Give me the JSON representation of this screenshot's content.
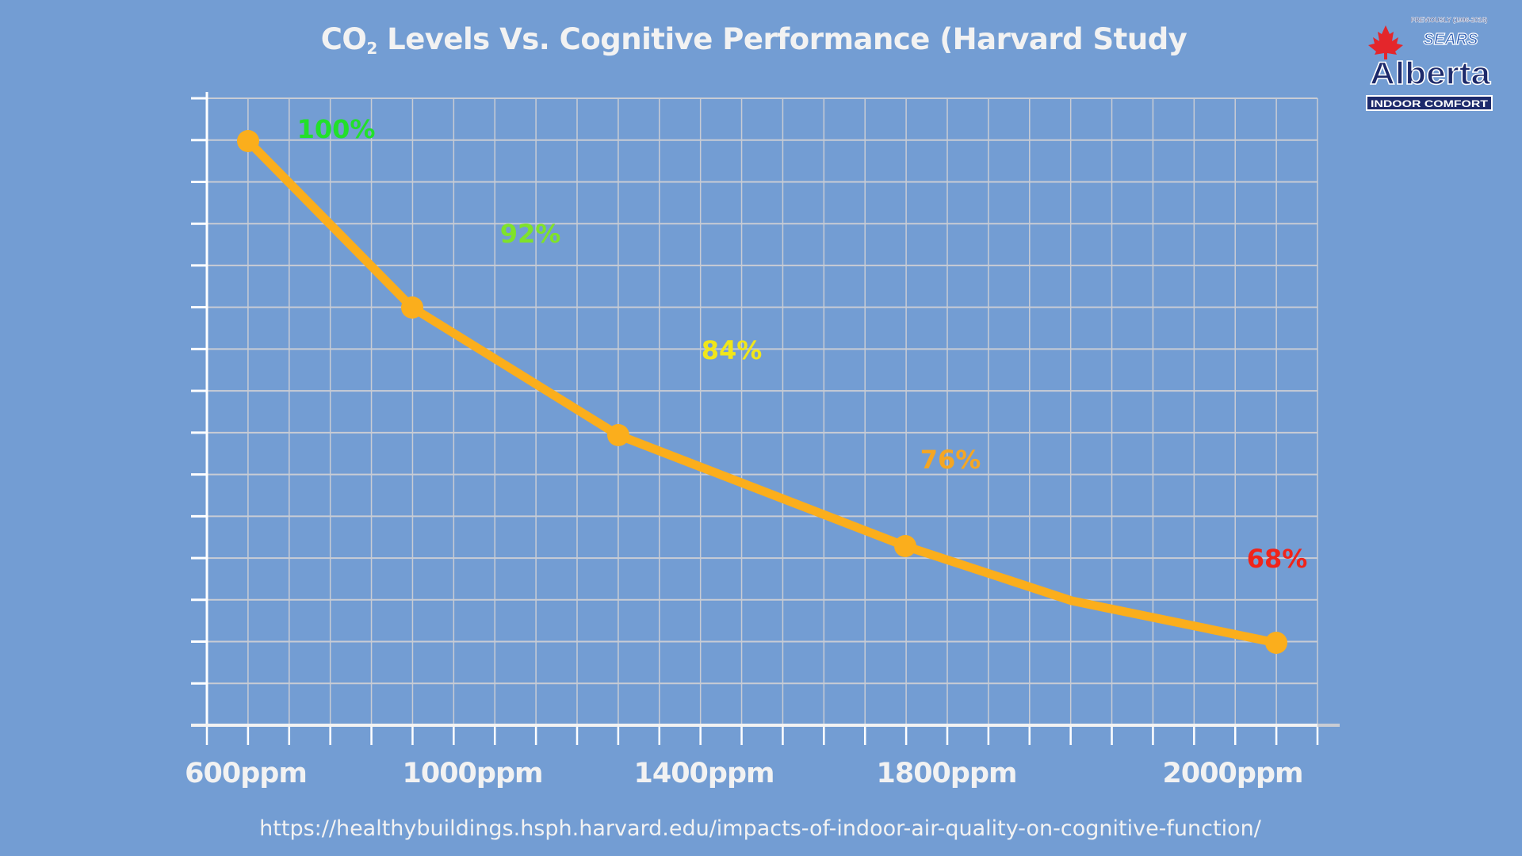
{
  "chart_data": {
    "type": "line",
    "title_main": "CO",
    "title_sub": "2",
    "title_rest": " Levels Vs. Cognitive Performance (Harvard Study",
    "x_tick_labels": [
      "600ppm",
      "1000ppm",
      "1400ppm",
      "1800ppm",
      "2000ppm"
    ],
    "series": [
      {
        "values": [
          100,
          92,
          84,
          76,
          68
        ]
      }
    ],
    "data_labels": [
      "100%",
      "92%",
      "84%",
      "76%",
      "68%"
    ],
    "data_label_colors": [
      "#22e02a",
      "#7fe22a",
      "#f0e61a",
      "#f5a623",
      "#f0241a"
    ],
    "line_color": "#fbae1c",
    "grid": true,
    "y_tick_labels_shown": false
  },
  "source_url": "https://healthybuildings.hsph.harvard.edu/impacts-of-indoor-air-quality-on-cognitive-function/",
  "logo": {
    "previously": "PREVIOUSLY (1996-2018)",
    "sears": "SEARS",
    "alberta": "Alberta",
    "tagline": "INDOOR COMFORT"
  },
  "colors": {
    "background": "#739dd3",
    "grid": "#c8ccd4",
    "axis": "#ffffff"
  }
}
